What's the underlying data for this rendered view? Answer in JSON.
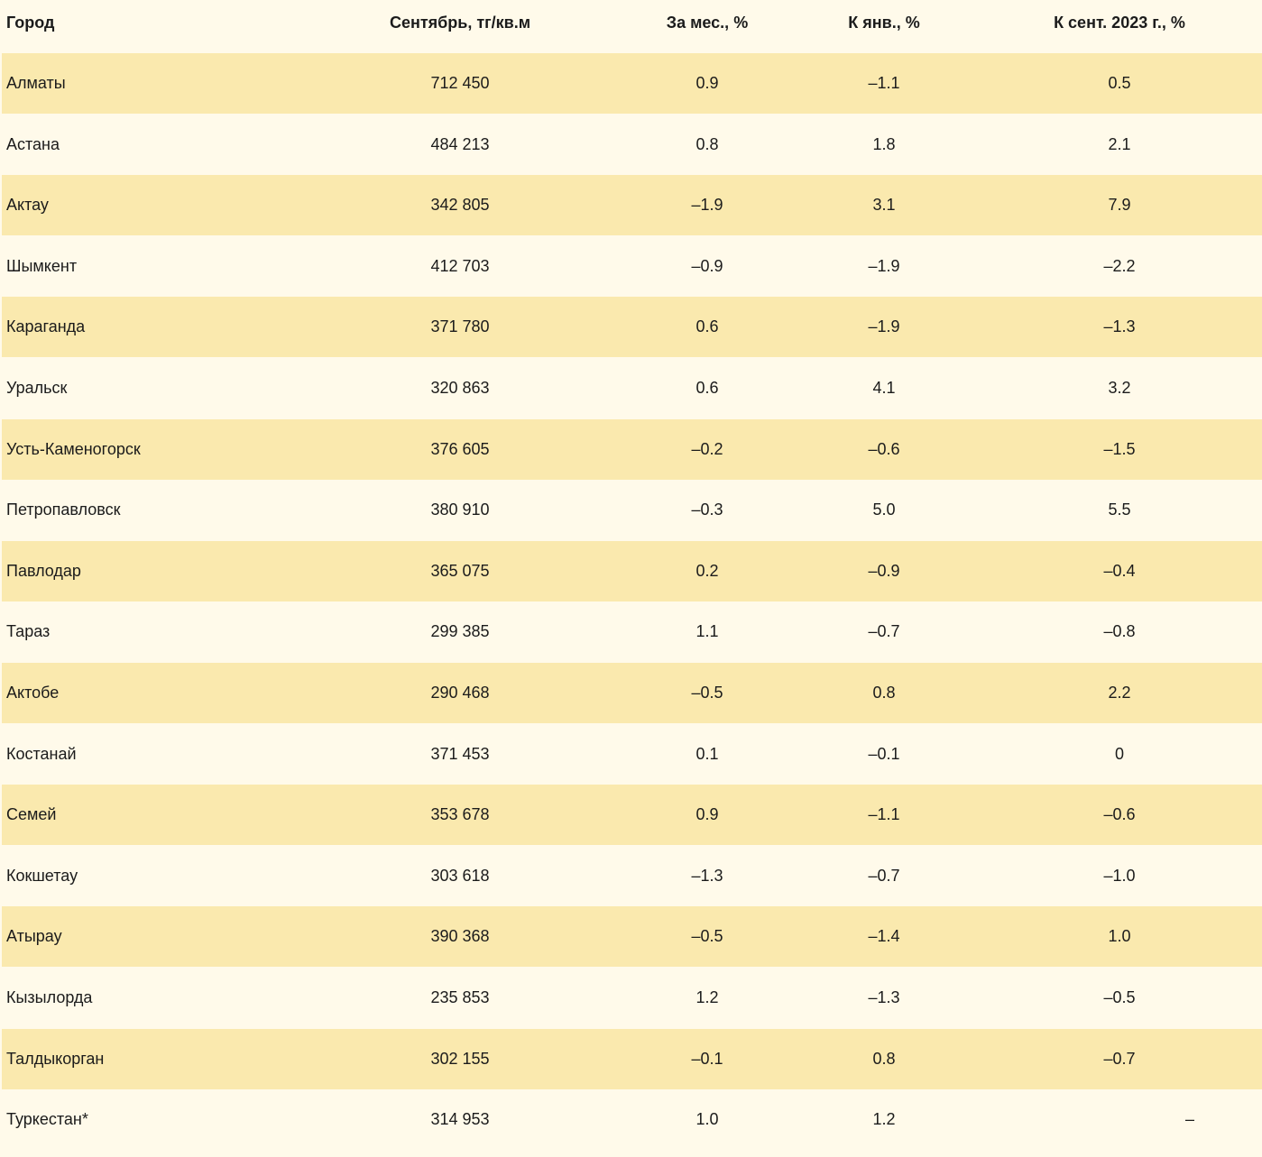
{
  "table": {
    "headers": {
      "city": "Город",
      "price": "Сентябрь, тг/кв.м",
      "month": "За мес., %",
      "jan": "К янв., %",
      "sep": "К сент. 2023 г., %"
    },
    "rows": [
      {
        "city": "Алматы",
        "price": "712 450",
        "month": "0.9",
        "jan": "–1.1",
        "sep": "0.5"
      },
      {
        "city": "Астана",
        "price": "484 213",
        "month": "0.8",
        "jan": "1.8",
        "sep": "2.1"
      },
      {
        "city": "Актау",
        "price": "342 805",
        "month": "–1.9",
        "jan": "3.1",
        "sep": "7.9"
      },
      {
        "city": "Шымкент",
        "price": "412 703",
        "month": "–0.9",
        "jan": "–1.9",
        "sep": "–2.2"
      },
      {
        "city": "Караганда",
        "price": "371 780",
        "month": "0.6",
        "jan": "–1.9",
        "sep": "–1.3"
      },
      {
        "city": "Уральск",
        "price": "320 863",
        "month": "0.6",
        "jan": "4.1",
        "sep": "3.2"
      },
      {
        "city": "Усть-Каменогорск",
        "price": "376 605",
        "month": "–0.2",
        "jan": "–0.6",
        "sep": "–1.5"
      },
      {
        "city": "Петропавловск",
        "price": "380 910",
        "month": "–0.3",
        "jan": "5.0",
        "sep": "5.5"
      },
      {
        "city": "Павлодар",
        "price": "365 075",
        "month": "0.2",
        "jan": "–0.9",
        "sep": "–0.4"
      },
      {
        "city": "Тараз",
        "price": "299 385",
        "month": "1.1",
        "jan": "–0.7",
        "sep": "–0.8"
      },
      {
        "city": "Актобе",
        "price": "290 468",
        "month": "–0.5",
        "jan": "0.8",
        "sep": "2.2"
      },
      {
        "city": "Костанай",
        "price": "371 453",
        "month": "0.1",
        "jan": "–0.1",
        "sep": "0"
      },
      {
        "city": "Семей",
        "price": "353 678",
        "month": "0.9",
        "jan": "–1.1",
        "sep": "–0.6"
      },
      {
        "city": "Кокшетау",
        "price": "303 618",
        "month": "–1.3",
        "jan": "–0.7",
        "sep": "–1.0"
      },
      {
        "city": "Атырау",
        "price": "390 368",
        "month": "–0.5",
        "jan": "–1.4",
        "sep": "1.0"
      },
      {
        "city": "Кызылорда",
        "price": "235 853",
        "month": "1.2",
        "jan": "–1.3",
        "sep": "–0.5"
      },
      {
        "city": "Талдыкорган",
        "price": "302 155",
        "month": "–0.1",
        "jan": "0.8",
        "sep": "–0.7"
      },
      {
        "city": "Туркестан*",
        "price": "314 953",
        "month": "1.0",
        "jan": "1.2",
        "sep": "–"
      }
    ]
  },
  "colors": {
    "row_highlight": "#fae9ae",
    "row_plain": "#fffaea",
    "text": "#1b1b1b"
  }
}
